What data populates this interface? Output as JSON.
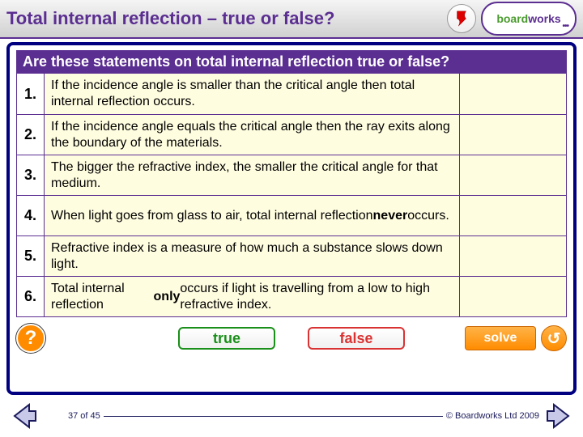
{
  "header": {
    "title": "Total internal reflection – true or false?",
    "logo_text_1": "board",
    "logo_text_2": "works",
    "logo_dots": "•••"
  },
  "question": "Are these statements on total internal reflection true or false?",
  "statements": [
    {
      "num": "1.",
      "text": "If the incidence angle is smaller than the critical angle then total internal reflection occurs."
    },
    {
      "num": "2.",
      "text": "If the incidence angle equals the critical angle then the ray exits along the boundary of the materials."
    },
    {
      "num": "3.",
      "text": "The bigger the refractive index, the smaller the critical angle for that medium."
    },
    {
      "num": "4.",
      "text_html": "When light goes from glass to air, total internal reflection <b>never</b> occurs."
    },
    {
      "num": "5.",
      "text": "Refractive index is a measure of how much a substance slows down light."
    },
    {
      "num": "6.",
      "text_html": "Total internal reflection <b>only</b> occurs if light is travelling from a low to high refractive index."
    }
  ],
  "buttons": {
    "true_label": "true",
    "false_label": "false",
    "solve_label": "solve",
    "help_label": "?",
    "reset_label": "↺"
  },
  "footer": {
    "page": "37 of 45",
    "copyright": "© Boardworks Ltd 2009"
  },
  "colors": {
    "purple": "#5b2e91",
    "navy_border": "#000080",
    "row_bg": "#fffde0",
    "orange": "#ff8c00",
    "green": "#1a8f1a",
    "red": "#d93333",
    "logo_green": "#4a9b2e"
  }
}
